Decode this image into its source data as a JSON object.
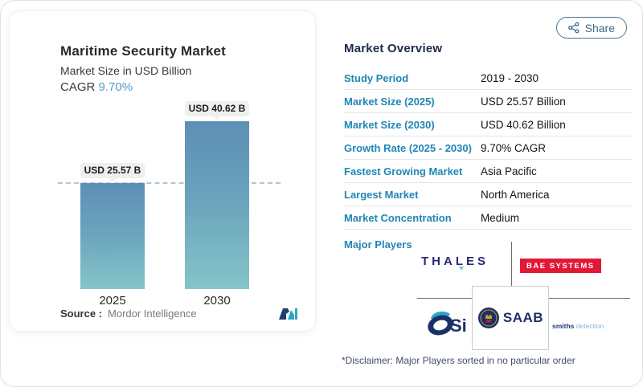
{
  "chart": {
    "title": "Maritime Security Market",
    "subtitle": "Market Size in USD Billion",
    "cagr_label": "CAGR",
    "cagr_value": "9.70%",
    "source_label": "Source :",
    "source_value": "Mordor Intelligence"
  },
  "chart_data": {
    "type": "bar",
    "title": "Maritime Security Market",
    "ylabel": "Market Size in USD Billion",
    "categories": [
      "2025",
      "2030"
    ],
    "values": [
      25.57,
      40.62
    ],
    "value_labels": [
      "USD 25.57 B",
      "USD 40.62 B"
    ],
    "cagr_percent": 9.7,
    "ylim": [
      0,
      45
    ],
    "grid": "single dashed reference line at first bar value",
    "bar_gradient": [
      "#5d8fb5",
      "#85c4c9"
    ],
    "dash_line_color": "#b8c4d4"
  },
  "share": {
    "label": "Share"
  },
  "overview": {
    "heading": "Market Overview",
    "rows": [
      {
        "label": "Study Period",
        "value": "2019 - 2030"
      },
      {
        "label": "Market Size (2025)",
        "value": "USD 25.57 Billion"
      },
      {
        "label": "Market Size (2030)",
        "value": "USD 40.62 Billion"
      },
      {
        "label": "Growth Rate (2025 - 2030)",
        "value": "9.70% CAGR"
      },
      {
        "label": "Fastest Growing Market",
        "value": "Asia Pacific"
      },
      {
        "label": "Largest Market",
        "value": "North America"
      },
      {
        "label": "Market Concentration",
        "value": "Medium"
      }
    ],
    "major_players_label": "Major Players",
    "disclaimer": "*Disclaimer: Major Players sorted in no particular order"
  },
  "players": {
    "thales": "THALES",
    "bae": "BAE SYSTEMS",
    "saab": "SAAB",
    "osi": "Si",
    "smiths_bold": "smiths",
    "smiths_light": "detection"
  },
  "colors": {
    "accent_teal": "#1e87b5",
    "cagr_blue": "#4f9cc9",
    "share_blue": "#3a6b8a",
    "bae_red": "#e31837",
    "navy_heading": "#1b2b4a"
  }
}
